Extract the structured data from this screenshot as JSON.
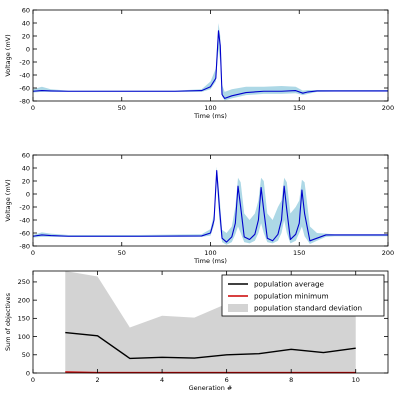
{
  "colors": {
    "trace": "#0000cc",
    "trace_band": "#add8e6",
    "avg": "#000000",
    "min": "#cc0000",
    "std_fill": "#d3d3d3",
    "frame": "#000000"
  },
  "chart_data": [
    {
      "type": "line",
      "title": "",
      "xlabel": "Time (ms)",
      "ylabel": "Voltage (mV)",
      "xlim": [
        0,
        200
      ],
      "ylim": [
        -80,
        60
      ],
      "xticks": [
        "0",
        "50",
        "100",
        "150",
        "200"
      ],
      "yticks": [
        "-80",
        "-60",
        "-40",
        "-20",
        "0",
        "20",
        "40",
        "60"
      ],
      "grid": false,
      "series": [
        {
          "role": "trace",
          "x": [
            0,
            5,
            10,
            20,
            40,
            60,
            80,
            95,
            100,
            103,
            104.5,
            105.5,
            106.5,
            108,
            112,
            120,
            130,
            140,
            148,
            152,
            155,
            160,
            170,
            180,
            190,
            200
          ],
          "y": [
            -65,
            -64,
            -64.5,
            -65,
            -65,
            -65,
            -65,
            -64,
            -58,
            -45,
            28,
            5,
            -70,
            -76,
            -72,
            -67,
            -65,
            -65,
            -64,
            -68,
            -66,
            -64.5,
            -64.5,
            -64.5,
            -64.5,
            -64.5
          ]
        },
        {
          "role": "band",
          "x": [
            0,
            5,
            10,
            20,
            40,
            60,
            80,
            95,
            100,
            103,
            104.5,
            105.5,
            106.5,
            108,
            112,
            120,
            130,
            140,
            148,
            152,
            155,
            160,
            170,
            180,
            190,
            200
          ],
          "low": [
            -67,
            -66,
            -66,
            -66,
            -66,
            -66,
            -66,
            -66,
            -62,
            -50,
            0,
            -20,
            -73,
            -79,
            -76,
            -71,
            -69,
            -69,
            -68,
            -71,
            -69,
            -66,
            -65.5,
            -65.5,
            -65.5,
            -65.5
          ],
          "high": [
            -62,
            -58,
            -62,
            -64,
            -64,
            -64,
            -64,
            -62,
            -50,
            -30,
            40,
            20,
            -55,
            -66,
            -62,
            -58,
            -58,
            -57,
            -58,
            -64,
            -63,
            -63,
            -63,
            -63,
            -63,
            -63
          ]
        }
      ]
    },
    {
      "type": "line",
      "title": "",
      "xlabel": "Time (ms)",
      "ylabel": "Voltage (mV)",
      "xlim": [
        0,
        200
      ],
      "ylim": [
        -80,
        60
      ],
      "xticks": [
        "0",
        "50",
        "100",
        "150",
        "200"
      ],
      "yticks": [
        "-80",
        "-60",
        "-40",
        "-20",
        "0",
        "20",
        "40",
        "60"
      ],
      "grid": false,
      "series": [
        {
          "role": "trace",
          "x": [
            0,
            5,
            10,
            20,
            60,
            95,
            100,
            102,
            103.5,
            105,
            106.5,
            109,
            112,
            114,
            115.5,
            117,
            119,
            122,
            125,
            127,
            128.5,
            130,
            132,
            135,
            138,
            140,
            141.5,
            143,
            145,
            148,
            150,
            151.5,
            153,
            156,
            160,
            165,
            170,
            180,
            200
          ],
          "y": [
            -65,
            -63,
            -64,
            -65,
            -65,
            -64.5,
            -60,
            -40,
            36,
            -20,
            -68,
            -74,
            -66,
            -45,
            12,
            -20,
            -66,
            -70,
            -62,
            -40,
            10,
            -25,
            -68,
            -72,
            -62,
            -40,
            12,
            -25,
            -70,
            -62,
            -45,
            6,
            -30,
            -72,
            -68,
            -63,
            -63,
            -63,
            -63
          ]
        },
        {
          "role": "band",
          "x": [
            0,
            5,
            10,
            20,
            60,
            95,
            100,
            102,
            103.5,
            105,
            106.5,
            109,
            112,
            114,
            115.5,
            117,
            119,
            122,
            125,
            127,
            128.5,
            130,
            132,
            135,
            138,
            140,
            141.5,
            143,
            145,
            148,
            150,
            151.5,
            153,
            156,
            160,
            165,
            170,
            180,
            200
          ],
          "low": [
            -67,
            -66,
            -66,
            -66,
            -66,
            -66,
            -64,
            -48,
            20,
            -40,
            -74,
            -78,
            -74,
            -62,
            -50,
            -60,
            -74,
            -76,
            -72,
            -60,
            -45,
            -60,
            -74,
            -76,
            -72,
            -60,
            -40,
            -60,
            -76,
            -72,
            -60,
            -50,
            -65,
            -77,
            -72,
            -66,
            -65,
            -65,
            -65
          ],
          "high": [
            -63,
            -59,
            -61,
            -63,
            -63,
            -62,
            -54,
            -30,
            42,
            0,
            -55,
            -60,
            -50,
            -20,
            25,
            18,
            -30,
            -40,
            -30,
            -10,
            25,
            20,
            -30,
            -40,
            -20,
            -10,
            25,
            18,
            -30,
            -20,
            -10,
            22,
            18,
            -50,
            -60,
            -61,
            -62,
            -62,
            -62
          ]
        }
      ]
    },
    {
      "type": "line",
      "title": "",
      "xlabel": "Generation #",
      "ylabel": "Sum of objectives",
      "xlim": [
        0,
        11
      ],
      "ylim": [
        0,
        280
      ],
      "xticks": [
        "0",
        "2",
        "4",
        "6",
        "8",
        "10"
      ],
      "yticks": [
        "0",
        "50",
        "100",
        "150",
        "200",
        "250"
      ],
      "grid": false,
      "legend": {
        "position": "top-right",
        "entries": [
          "population average",
          "population minimum",
          "population standard deviation"
        ]
      },
      "x": [
        1,
        2,
        3,
        4,
        5,
        6,
        7,
        8,
        9,
        10
      ],
      "series": [
        {
          "name": "population average",
          "values": [
            111,
            102,
            40,
            43,
            41,
            50,
            53,
            65,
            56,
            68
          ]
        },
        {
          "name": "population minimum",
          "values": [
            3,
            1,
            1,
            1,
            1,
            1,
            1,
            1,
            1,
            1
          ]
        },
        {
          "name": "population standard deviation",
          "low": [
            0,
            0,
            0,
            0,
            0,
            0,
            0,
            0,
            0,
            0
          ],
          "high": [
            280,
            265,
            125,
            157,
            152,
            190,
            195,
            210,
            190,
            210
          ]
        }
      ]
    }
  ]
}
